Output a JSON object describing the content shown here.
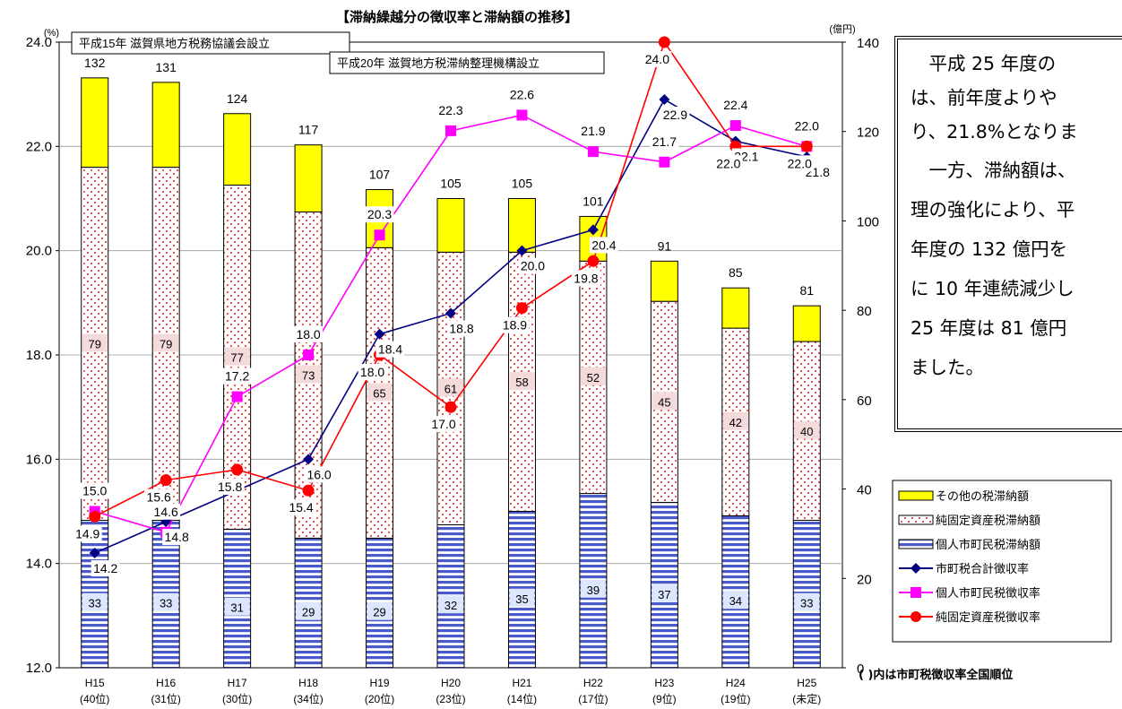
{
  "title": "【滞納繰越分の徴収率と滞納額の推移】",
  "left_axis_unit": "(%)",
  "right_axis_unit": "(億円)",
  "annotations": [
    "平成15年 滋賀県地方税務協議会設立",
    "平成20年 滋賀地方税滞納整理機構設立"
  ],
  "footnote": "( )内は市町税徴収率全国順位",
  "note_lines": [
    "　平成 25 年度の",
    "は、前年度よりや",
    "り、21.8%となりま",
    "　一方、滞納額は、",
    "理の強化により、平",
    "年度の 132 億円を",
    "に 10 年連続減少し",
    "25 年度は 81 億円",
    "ました。"
  ],
  "colors": {
    "other_tax": "#ffff00",
    "property_tax": "#f4a6a6",
    "resident_tax": "#4a5acb",
    "total_rate": "#000080",
    "resident_rate": "#ff00ff",
    "property_rate": "#ff0000"
  },
  "chart_data": {
    "type": "bar",
    "categories": [
      "H15",
      "H16",
      "H17",
      "H18",
      "H19",
      "H20",
      "H21",
      "H22",
      "H23",
      "H24",
      "H25"
    ],
    "category_sublabels": [
      "(40位)",
      "(31位)",
      "(30位)",
      "(34位)",
      "(20位)",
      "(23位)",
      "(14位)",
      "(17位)",
      "(9位)",
      "(19位)",
      "(未定)"
    ],
    "left_axis": {
      "min": 12,
      "max": 24,
      "ticks": [
        "12.0",
        "14.0",
        "16.0",
        "18.0",
        "20.0",
        "22.0",
        "24.0"
      ]
    },
    "right_axis": {
      "min": 0,
      "max": 140,
      "ticks": [
        "0",
        "20",
        "40",
        "60",
        "80",
        "100",
        "120",
        "140"
      ]
    },
    "bar_totals": [
      132,
      131,
      124,
      117,
      107,
      105,
      105,
      101,
      91,
      85,
      81
    ],
    "bar_series": [
      {
        "name": "個人市町民税滞納額",
        "values": [
          33,
          33,
          31,
          29,
          29,
          32,
          35,
          39,
          37,
          34,
          33
        ]
      },
      {
        "name": "純固定資産税滞納額",
        "values": [
          79,
          79,
          77,
          73,
          65,
          61,
          58,
          52,
          45,
          42,
          40
        ]
      },
      {
        "name": "その他の税滞納額",
        "values": [
          20,
          19,
          16,
          15,
          13,
          12,
          12,
          10,
          9,
          9,
          8
        ]
      }
    ],
    "line_series": [
      {
        "name": "市町税合計徴収率",
        "values": [
          14.2,
          14.8,
          null,
          16.0,
          18.4,
          18.8,
          20.0,
          20.4,
          22.9,
          22.1,
          21.8
        ],
        "labels": [
          "14.2",
          "14.8",
          "",
          "16.0",
          "18.4",
          "18.8",
          "20.0",
          "20.4",
          "22.9",
          "22.1",
          "21.8"
        ]
      },
      {
        "name": "個人市町民税徴収率",
        "values": [
          15.0,
          14.6,
          17.2,
          18.0,
          20.3,
          22.3,
          22.6,
          21.9,
          21.7,
          22.4,
          22.0
        ],
        "labels": [
          "15.0",
          "14.6",
          "17.2",
          "18.0",
          "20.3",
          "22.3",
          "22.6",
          "21.9",
          "21.7",
          "22.4",
          "22.0"
        ]
      },
      {
        "name": "純固定資産税徴収率",
        "values": [
          14.9,
          15.6,
          15.8,
          15.4,
          18.0,
          17.0,
          18.9,
          19.8,
          24.0,
          22.0,
          22.0
        ],
        "labels": [
          "14.9",
          "15.6",
          "15.8",
          "15.4",
          "18.0",
          "17.0",
          "18.9",
          "19.8",
          "24.0",
          "22.0",
          "22.0"
        ]
      }
    ],
    "legend": [
      "その他の税滞納額",
      "純固定資産税滞納額",
      "個人市町民税滞納額",
      "市町税合計徴収率",
      "個人市町民税徴収率",
      "純固定資産税徴収率"
    ]
  }
}
